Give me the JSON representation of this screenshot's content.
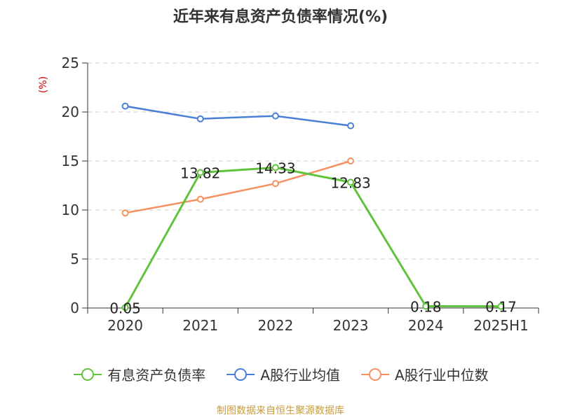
{
  "title": "近年来有息资产负债率情况(%)",
  "source": "制图数据来自恒生聚源数据库",
  "chart_data": {
    "type": "line",
    "title": "近年来有息资产负债率情况(%)",
    "ylabel": "(%)",
    "xlabel": "",
    "categories": [
      "2020",
      "2021",
      "2022",
      "2023",
      "2024",
      "2025H1"
    ],
    "ylim": [
      0,
      25
    ],
    "yticks": [
      0,
      5,
      10,
      15,
      20,
      25
    ],
    "grid": true,
    "legend_position": "bottom",
    "series": [
      {
        "name": "有息资产负债率",
        "color": "#5fc43a",
        "values": [
          0.05,
          13.82,
          14.33,
          12.83,
          0.18,
          0.17
        ],
        "labels": [
          "0.05",
          "13.82",
          "14.33",
          "12.83",
          "0.18",
          "0.17"
        ]
      },
      {
        "name": "A股行业均值",
        "color": "#4a7fd6",
        "values": [
          20.6,
          19.3,
          19.6,
          18.6,
          null,
          null
        ],
        "labels": null
      },
      {
        "name": "A股行业中位数",
        "color": "#f59160",
        "values": [
          9.7,
          11.1,
          12.7,
          15.0,
          null,
          null
        ],
        "labels": null
      }
    ]
  }
}
